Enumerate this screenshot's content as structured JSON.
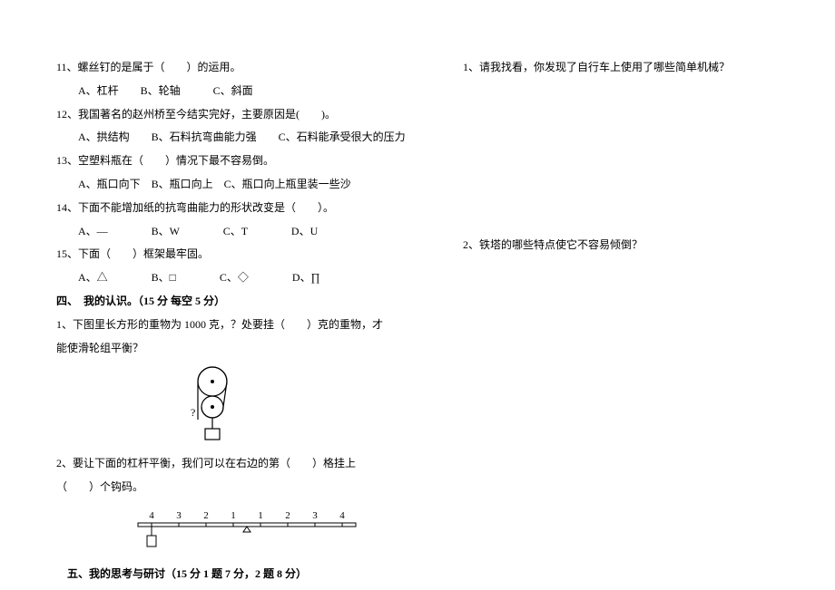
{
  "left": {
    "q11": "11、螺丝钉的是属于（　　）的运用。",
    "q11_opts": "　A、杠杆　　B、轮轴　　　C、斜面",
    "q12": "12、我国著名的赵州桥至今结实完好，主要原因是(　　)。",
    "q12_opts": "　A、拱结构　　B、石料抗弯曲能力强　　C、石料能承受很大的压力",
    "q13": "13、空塑料瓶在（　　）情况下最不容易倒。",
    "q13_opts": "　A、瓶口向下　B、瓶口向上　C、瓶口向上瓶里装一些沙",
    "q14": "14、下面不能增加纸的抗弯曲能力的形状改变是（　　）。",
    "q14_opts": "　A、—　　　　B、W　　　　C、T　　　　D、U",
    "q15": "15、下面（　　）框架最牢固。",
    "q15_opts": "　A、△　　　　B、□　　　　C、◇　　　　D、∏",
    "sec4": "四、　我的认识。（15 分  每空 5 分）",
    "s4q1": "1、下图里长方形的重物为 1000 克，？处要挂（　　）克的重物，才能使滑轮组平衡？",
    "s4q2": "2、要让下面的杠杆平衡，我们可以在右边的第（　　）格挂上（　　）个钩码。",
    "lever_labels": [
      "4",
      "3",
      "2",
      "1",
      "1",
      "2",
      "3",
      "4"
    ],
    "sec5": "　五、我的思考与研讨（15 分  1 题 7 分，2 题 8 分）"
  },
  "right": {
    "q1": "1、请我找看，你发现了自行车上使用了哪些简单机械？",
    "q2": "2、铁塔的哪些特点使它不容易倾倒？"
  },
  "style": {
    "text_color": "#000000",
    "bg": "#ffffff",
    "font_size": 12,
    "stroke": "#000000",
    "line_height": 2.15
  }
}
